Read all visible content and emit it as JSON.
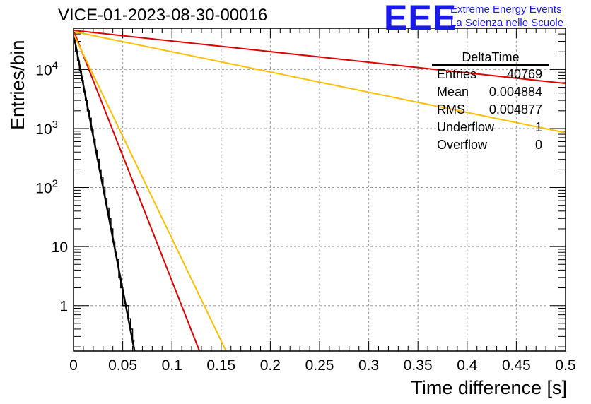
{
  "page": {
    "title": "VICE-01-2023-08-30-00016",
    "logo": {
      "mark": "EEE",
      "line1": "Extreme Energy Events",
      "line2": "La Scienza nelle Scuole"
    }
  },
  "stats_box": {
    "name": "DeltaTime",
    "rows": [
      {
        "label": "Entries",
        "value": "40769"
      },
      {
        "label": "Mean",
        "value": "0.004884"
      },
      {
        "label": "RMS",
        "value": "0.004877"
      },
      {
        "label": "Underflow",
        "value": "1"
      },
      {
        "label": "Overflow",
        "value": "0"
      }
    ]
  },
  "chart_data": {
    "type": "line",
    "xlabel": "Time difference [s]",
    "ylabel": "Entries/bin",
    "xlim": [
      0,
      0.5
    ],
    "ylim": [
      0.17,
      50000
    ],
    "y_scale": "log",
    "grid": true,
    "x_ticks": [
      "0",
      "0.05",
      "0.1",
      "0.15",
      "0.2",
      "0.25",
      "0.3",
      "0.35",
      "0.4",
      "0.45",
      "0.5"
    ],
    "y_ticks": [
      {
        "base": "1",
        "exp": ""
      },
      {
        "base": "10",
        "exp": ""
      },
      {
        "base": "10",
        "exp": "2"
      },
      {
        "base": "10",
        "exp": "3"
      },
      {
        "base": "10",
        "exp": "4"
      }
    ],
    "series": [
      {
        "kind": "histogram",
        "color": "#000000",
        "x": [
          0,
          0.002,
          0.004,
          0.006,
          0.008,
          0.01,
          0.012,
          0.014,
          0.016,
          0.018,
          0.02,
          0.022,
          0.024,
          0.026,
          0.028,
          0.03,
          0.032,
          0.034,
          0.036,
          0.038,
          0.04,
          0.042,
          0.044,
          0.046,
          0.048,
          0.05,
          0.052,
          0.054,
          0.056,
          0.058,
          0.06
        ],
        "values": [
          30000,
          20000,
          14000,
          9500,
          6500,
          4200,
          3000,
          2000,
          1500,
          950,
          650,
          430,
          300,
          200,
          150,
          100,
          65,
          45,
          30,
          20,
          12,
          8,
          6,
          3,
          2,
          1,
          1,
          1,
          0.6,
          0.4,
          0.25
        ]
      },
      {
        "kind": "fit",
        "color": "#000000",
        "x": [
          0,
          0.062
        ],
        "values": [
          40000,
          0.17
        ]
      },
      {
        "kind": "fit",
        "color": "#e00000",
        "x": [
          0,
          0.128
        ],
        "values": [
          46000,
          0.17
        ]
      },
      {
        "kind": "fit",
        "color": "#e00000",
        "x": [
          0,
          0.5
        ],
        "values": [
          46000,
          5800
        ]
      },
      {
        "kind": "fit",
        "color": "#ffbf00",
        "x": [
          0,
          0.155
        ],
        "values": [
          40000,
          0.17
        ]
      },
      {
        "kind": "fit",
        "color": "#ffbf00",
        "x": [
          0,
          0.5
        ],
        "values": [
          44000,
          850
        ]
      }
    ]
  }
}
